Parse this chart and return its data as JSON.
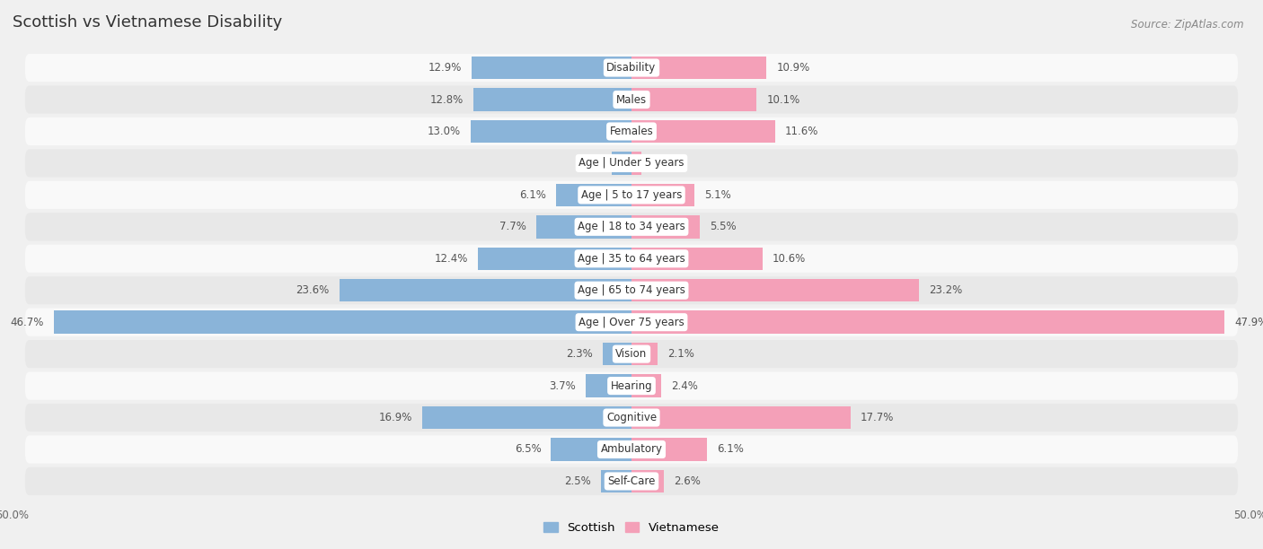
{
  "title": "Scottish vs Vietnamese Disability",
  "source": "Source: ZipAtlas.com",
  "categories": [
    "Disability",
    "Males",
    "Females",
    "Age | Under 5 years",
    "Age | 5 to 17 years",
    "Age | 18 to 34 years",
    "Age | 35 to 64 years",
    "Age | 65 to 74 years",
    "Age | Over 75 years",
    "Vision",
    "Hearing",
    "Cognitive",
    "Ambulatory",
    "Self-Care"
  ],
  "scottish": [
    12.9,
    12.8,
    13.0,
    1.6,
    6.1,
    7.7,
    12.4,
    23.6,
    46.7,
    2.3,
    3.7,
    16.9,
    6.5,
    2.5
  ],
  "vietnamese": [
    10.9,
    10.1,
    11.6,
    0.81,
    5.1,
    5.5,
    10.6,
    23.2,
    47.9,
    2.1,
    2.4,
    17.7,
    6.1,
    2.6
  ],
  "scottish_color": "#8ab4d9",
  "vietnamese_color": "#f4a0b8",
  "axis_limit": 50.0,
  "background_color": "#f0f0f0",
  "row_bg_light": "#f9f9f9",
  "row_bg_dark": "#e8e8e8",
  "title_fontsize": 13,
  "label_fontsize": 8.5,
  "value_fontsize": 8.5,
  "bar_height": 0.72,
  "x_tick_label_left": "50.0%",
  "x_tick_label_right": "50.0%",
  "legend_label_scottish": "Scottish",
  "legend_label_vietnamese": "Vietnamese"
}
